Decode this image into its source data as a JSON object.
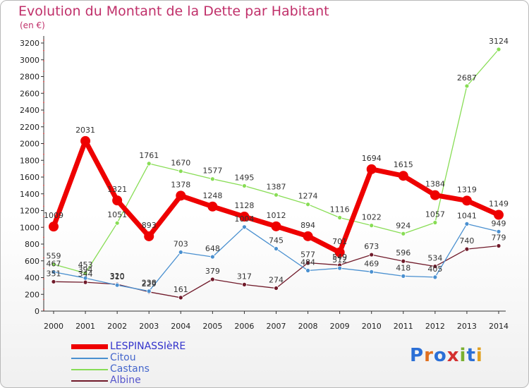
{
  "chart_data": {
    "type": "line",
    "title": "Evolution du Montant de la Dette par Habitant",
    "subtitle": "(en €)",
    "x": [
      "2000",
      "2001",
      "2002",
      "2003",
      "2004",
      "2005",
      "2006",
      "2007",
      "2008",
      "2009",
      "2010",
      "2011",
      "2012",
      "2013",
      "2014"
    ],
    "ylim": [
      0,
      3200
    ],
    "yticks": [
      0,
      200,
      400,
      600,
      800,
      1000,
      1200,
      1400,
      1600,
      1800,
      2000,
      2200,
      2400,
      2600,
      2800,
      3000,
      3200
    ],
    "grid": false,
    "legend_position": "bottom-left",
    "series": [
      {
        "name": "LESPINASSIèRE",
        "color": "#ee0000",
        "values": [
          1009,
          2031,
          1321,
          893,
          1378,
          1248,
          1128,
          1012,
          894,
          701,
          1694,
          1615,
          1384,
          1319,
          1149
        ]
      },
      {
        "name": "Citou",
        "color": "#4a90d0",
        "values": [
          467,
          394,
          310,
          238,
          703,
          648,
          1004,
          745,
          484,
          512,
          469,
          418,
          405,
          1041,
          949
        ]
      },
      {
        "name": "Castans",
        "color": "#88dd55",
        "values": [
          559,
          453,
          1051,
          1761,
          1670,
          1577,
          1495,
          1387,
          1274,
          1116,
          1022,
          924,
          1057,
          2687,
          3124
        ]
      },
      {
        "name": "Albine",
        "color": "#701a2a",
        "values": [
          351,
          344,
          320,
          229,
          161,
          379,
          317,
          274,
          577,
          549,
          673,
          596,
          534,
          740,
          779
        ]
      }
    ]
  },
  "logo": {
    "text": "Proxiti"
  }
}
